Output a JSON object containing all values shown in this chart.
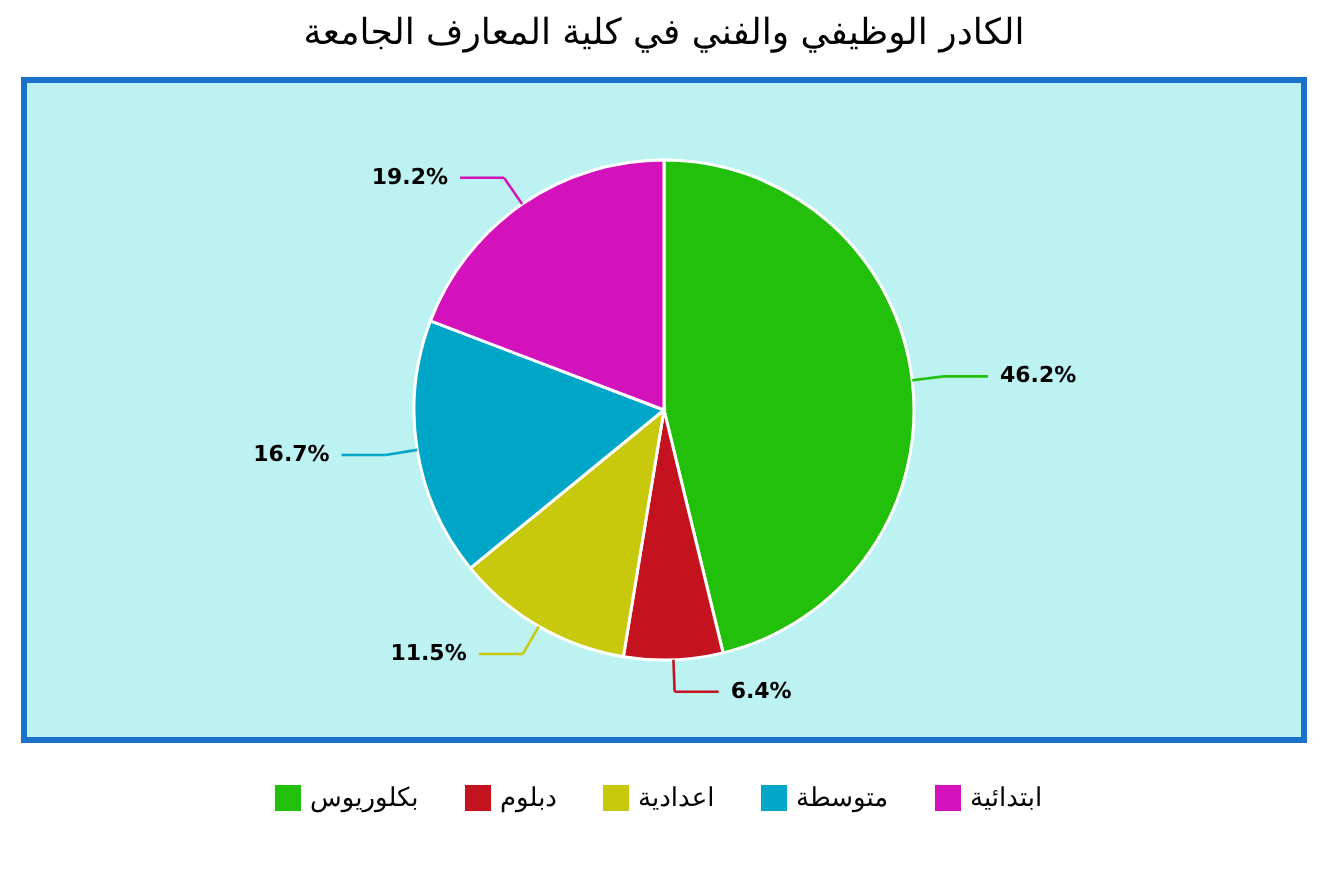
{
  "chart_data": {
    "type": "pie",
    "title": "الكادر الوظيفي والفني في كلية المعارف الجامعة",
    "categories": [
      "بكلوريوس",
      "دبلوم",
      "اعدادية",
      "متوسطة",
      "ابتدائية"
    ],
    "values": [
      46.2,
      6.4,
      11.5,
      16.7,
      19.2
    ],
    "colors": [
      "#22c00a",
      "#c4121e",
      "#c8c80c",
      "#00a6c8",
      "#d412bc"
    ],
    "value_labels": [
      "46.2%",
      "6.4%",
      "11.5%",
      "16.7%",
      "19.2%"
    ],
    "legend": "bottom"
  }
}
